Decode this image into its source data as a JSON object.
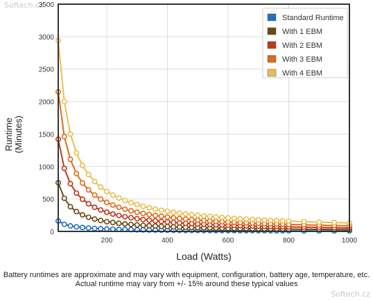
{
  "watermark": "Softech.cz",
  "footnote": {
    "line1": "Battery runtimes are approximate and may vary with equipment, configuration, battery age, temperature, etc.",
    "line2": "Actual runtime may vary from +/- 15% around these typical values"
  },
  "chart_data": {
    "type": "line",
    "xlabel": "Load (Watts)",
    "ylabel_line1": "Runtime",
    "ylabel_line2": "(Minutes)",
    "xlim": [
      40,
      1000
    ],
    "ylim": [
      0,
      3500
    ],
    "xticks": [
      200,
      400,
      600,
      800,
      1000
    ],
    "yticks": [
      0,
      500,
      1000,
      1500,
      2000,
      2500,
      3000,
      3500
    ],
    "grid": true,
    "legend_position": "top-right",
    "x": [
      40,
      60,
      80,
      100,
      120,
      140,
      160,
      180,
      200,
      220,
      240,
      260,
      280,
      300,
      320,
      340,
      360,
      380,
      400,
      420,
      440,
      460,
      480,
      500,
      520,
      540,
      560,
      580,
      600,
      620,
      640,
      660,
      680,
      700,
      720,
      740,
      760,
      780,
      800,
      850,
      900,
      950,
      1000
    ],
    "series": [
      {
        "name": "Standard Runtime",
        "color": "#1f6fc5",
        "values": [
          160,
          110,
          85,
          70,
          60,
          52,
          46,
          41,
          37,
          34,
          31,
          29,
          27,
          25,
          23,
          22,
          21,
          20,
          19,
          18,
          17,
          16,
          16,
          15,
          14,
          14,
          13,
          13,
          12,
          12,
          11,
          11,
          11,
          10,
          10,
          10,
          9,
          9,
          9,
          8,
          8,
          7,
          7
        ]
      },
      {
        "name": "With 1 EBM",
        "color": "#6b4a12",
        "values": [
          750,
          510,
          380,
          305,
          255,
          218,
          190,
          168,
          150,
          137,
          125,
          115,
          107,
          100,
          93,
          88,
          83,
          78,
          74,
          70,
          67,
          64,
          61,
          58,
          56,
          54,
          52,
          50,
          48,
          47,
          45,
          44,
          42,
          41,
          40,
          39,
          38,
          37,
          36,
          34,
          32,
          30,
          28
        ]
      },
      {
        "name": "With 2 EBM",
        "color": "#c0391b",
        "values": [
          1420,
          970,
          735,
          590,
          495,
          425,
          372,
          330,
          296,
          268,
          246,
          226,
          210,
          196,
          183,
          172,
          162,
          153,
          145,
          138,
          131,
          125,
          120,
          115,
          110,
          106,
          102,
          98,
          95,
          92,
          89,
          86,
          83,
          81,
          78,
          76,
          74,
          72,
          70,
          66,
          62,
          58,
          55
        ]
      },
      {
        "name": "With 3 EBM",
        "color": "#dd6c1a",
        "values": [
          2150,
          1460,
          1110,
          890,
          745,
          640,
          560,
          497,
          446,
          405,
          371,
          342,
          317,
          296,
          277,
          260,
          245,
          232,
          220,
          209,
          199,
          190,
          181,
          174,
          167,
          161,
          155,
          149,
          144,
          139,
          135,
          131,
          127,
          123,
          120,
          117,
          114,
          111,
          108,
          102,
          96,
          91,
          87
        ]
      },
      {
        "name": "With 4 EBM",
        "color": "#ecbd52",
        "values": [
          2940,
          2000,
          1500,
          1210,
          1015,
          875,
          768,
          683,
          615,
          560,
          514,
          475,
          441,
          412,
          387,
          364,
          344,
          326,
          310,
          295,
          282,
          270,
          259,
          249,
          239,
          231,
          223,
          215,
          208,
          202,
          196,
          190,
          185,
          180,
          175,
          171,
          167,
          163,
          159,
          150,
          143,
          136,
          130
        ]
      }
    ]
  }
}
